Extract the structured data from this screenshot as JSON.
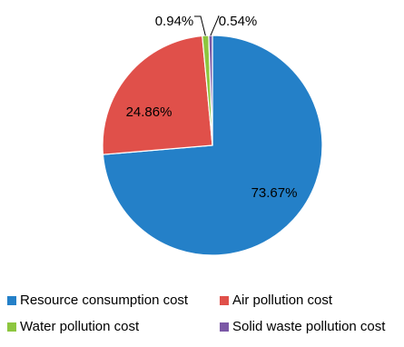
{
  "chart_data": {
    "type": "pie",
    "series": [
      {
        "name": "Resource consumption cost",
        "value": 73.67,
        "label": "73.67%",
        "color": "#2480c8"
      },
      {
        "name": "Air pollution cost",
        "value": 24.86,
        "label": "24.86%",
        "color": "#e0504a"
      },
      {
        "name": "Water pollution cost",
        "value": 0.94,
        "label": "0.94%",
        "color": "#8dc63f"
      },
      {
        "name": "Solid waste pollution cost",
        "value": 0.54,
        "label": "0.54%",
        "color": "#7b58a6"
      }
    ],
    "legend_position": "bottom"
  }
}
